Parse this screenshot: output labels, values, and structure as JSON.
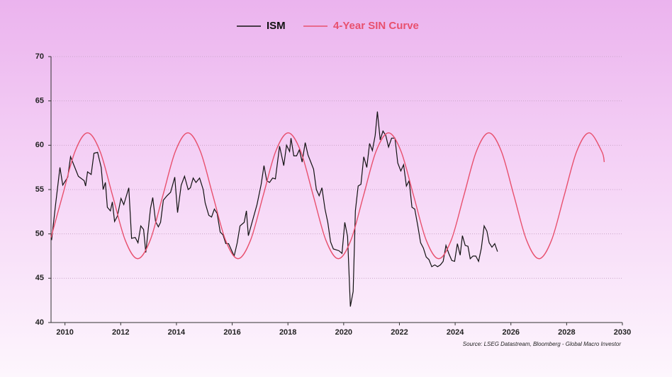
{
  "chart_data": {
    "type": "line",
    "source": "Source: LSEG Datastream, Bloomberg - Global Macro Investor",
    "xlim": [
      2009.5,
      2030
    ],
    "xticks": [
      2010,
      2012,
      2014,
      2016,
      2018,
      2020,
      2022,
      2024,
      2026,
      2028,
      2030
    ],
    "ylim": [
      40,
      70
    ],
    "yticks": [
      40,
      45,
      50,
      55,
      60,
      65,
      70
    ],
    "grid": true,
    "series": [
      {
        "name": "ISM",
        "color": "#111111",
        "x": [
          2009.52,
          2009.67,
          2009.82,
          2009.92,
          2010.1,
          2010.2,
          2010.48,
          2010.69,
          2010.74,
          2010.81,
          2010.94,
          2011.04,
          2011.17,
          2011.3,
          2011.37,
          2011.45,
          2011.52,
          2011.63,
          2011.7,
          2011.78,
          2011.88,
          2012.01,
          2012.11,
          2012.29,
          2012.39,
          2012.52,
          2012.62,
          2012.72,
          2012.82,
          2012.9,
          2012.97,
          2013.07,
          2013.15,
          2013.25,
          2013.35,
          2013.43,
          2013.53,
          2013.66,
          2013.79,
          2013.94,
          2014.04,
          2014.17,
          2014.29,
          2014.42,
          2014.5,
          2014.6,
          2014.7,
          2014.83,
          2014.96,
          2015.03,
          2015.16,
          2015.26,
          2015.36,
          2015.46,
          2015.57,
          2015.67,
          2015.77,
          2015.87,
          2015.97,
          2016.07,
          2016.18,
          2016.28,
          2016.43,
          2016.51,
          2016.58,
          2016.73,
          2016.89,
          2017.04,
          2017.14,
          2017.24,
          2017.34,
          2017.45,
          2017.55,
          2017.7,
          2017.85,
          2017.95,
          2018.06,
          2018.11,
          2018.21,
          2018.31,
          2018.41,
          2018.51,
          2018.62,
          2018.72,
          2018.82,
          2018.92,
          2019.02,
          2019.12,
          2019.22,
          2019.33,
          2019.43,
          2019.53,
          2019.63,
          2019.73,
          2019.83,
          2019.94,
          2020.04,
          2020.14,
          2020.24,
          2020.34,
          2020.42,
          2020.52,
          2020.62,
          2020.72,
          2020.83,
          2020.93,
          2021.03,
          2021.13,
          2021.21,
          2021.31,
          2021.41,
          2021.51,
          2021.61,
          2021.72,
          2021.84,
          2021.94,
          2022.05,
          2022.15,
          2022.25,
          2022.35,
          2022.45,
          2022.55,
          2022.66,
          2022.76,
          2022.86,
          2022.96,
          2023.06,
          2023.16,
          2023.27,
          2023.37,
          2023.47,
          2023.57,
          2023.67,
          2023.77,
          2023.88,
          2023.98,
          2024.08,
          2024.18,
          2024.26,
          2024.36,
          2024.46,
          2024.54,
          2024.64,
          2024.74,
          2024.84,
          2024.94,
          2025.04,
          2025.14,
          2025.22,
          2025.32,
          2025.42,
          2025.52
        ],
        "values": [
          49.3,
          53.5,
          57.5,
          55.5,
          56.4,
          58.7,
          56.5,
          56.0,
          55.4,
          57.0,
          56.7,
          59.1,
          59.2,
          57.5,
          55.0,
          55.8,
          53.0,
          52.6,
          53.6,
          51.4,
          52.0,
          54.0,
          53.3,
          55.2,
          49.5,
          49.6,
          49.0,
          50.9,
          50.5,
          47.9,
          50.0,
          52.9,
          54.1,
          51.4,
          50.8,
          51.3,
          53.8,
          54.3,
          54.7,
          56.4,
          52.4,
          55.5,
          56.5,
          55.0,
          55.2,
          56.3,
          55.8,
          56.3,
          55.0,
          53.5,
          52.1,
          51.9,
          52.8,
          52.3,
          50.2,
          49.9,
          48.9,
          48.9,
          48.2,
          47.5,
          49.0,
          50.9,
          51.3,
          52.6,
          49.8,
          51.5,
          53.3,
          55.6,
          57.7,
          56.0,
          55.8,
          56.3,
          56.2,
          59.9,
          57.7,
          60.0,
          59.3,
          60.8,
          58.8,
          58.8,
          59.5,
          58.1,
          60.3,
          58.9,
          58.1,
          57.3,
          55.0,
          54.3,
          55.2,
          52.8,
          51.3,
          49.1,
          48.3,
          48.2,
          48.1,
          47.8,
          51.3,
          49.7,
          41.8,
          43.5,
          52.6,
          55.4,
          55.6,
          58.7,
          57.5,
          60.2,
          59.4,
          61.1,
          63.8,
          60.6,
          61.6,
          61.1,
          59.8,
          60.8,
          60.8,
          58.0,
          57.1,
          57.8,
          55.4,
          56.0,
          53.0,
          52.8,
          50.9,
          49.0,
          48.4,
          47.4,
          47.1,
          46.3,
          46.5,
          46.3,
          46.5,
          46.9,
          48.7,
          47.8,
          47.0,
          46.9,
          48.9,
          47.6,
          49.8,
          48.7,
          48.6,
          47.2,
          47.5,
          47.5,
          46.9,
          48.4,
          50.9,
          50.3,
          49.0,
          48.5,
          48.9,
          48.0
        ]
      },
      {
        "name": "4-Year SIN Curve",
        "color": "#e8506e",
        "x": [
          2009.5,
          2009.91,
          2010.36,
          2010.81,
          2011.26,
          2011.71,
          2012.16,
          2012.61,
          2013.06,
          2013.51,
          2013.96,
          2014.41,
          2014.86,
          2015.31,
          2015.76,
          2016.21,
          2016.66,
          2017.11,
          2017.56,
          2018.01,
          2018.46,
          2018.91,
          2019.36,
          2019.81,
          2020.26,
          2020.71,
          2021.16,
          2021.61,
          2022.06,
          2022.51,
          2022.96,
          2023.41,
          2023.86,
          2024.31,
          2024.76,
          2025.21,
          2025.66,
          2026.11,
          2026.56,
          2027.01,
          2027.46,
          2027.91,
          2028.36,
          2028.81,
          2029.26,
          2029.35
        ],
        "values": [
          49.6,
          54.3,
          59.3,
          61.4,
          59.3,
          54.3,
          49.3,
          47.2,
          49.3,
          54.3,
          59.3,
          61.4,
          59.3,
          54.3,
          49.3,
          47.2,
          49.3,
          54.3,
          59.3,
          61.4,
          59.3,
          54.3,
          49.3,
          47.2,
          49.3,
          54.3,
          59.3,
          61.4,
          59.3,
          54.3,
          49.3,
          47.2,
          49.3,
          54.3,
          59.3,
          61.4,
          59.3,
          54.3,
          49.3,
          47.2,
          49.3,
          54.3,
          59.3,
          61.4,
          59.3,
          58.1
        ]
      }
    ]
  }
}
